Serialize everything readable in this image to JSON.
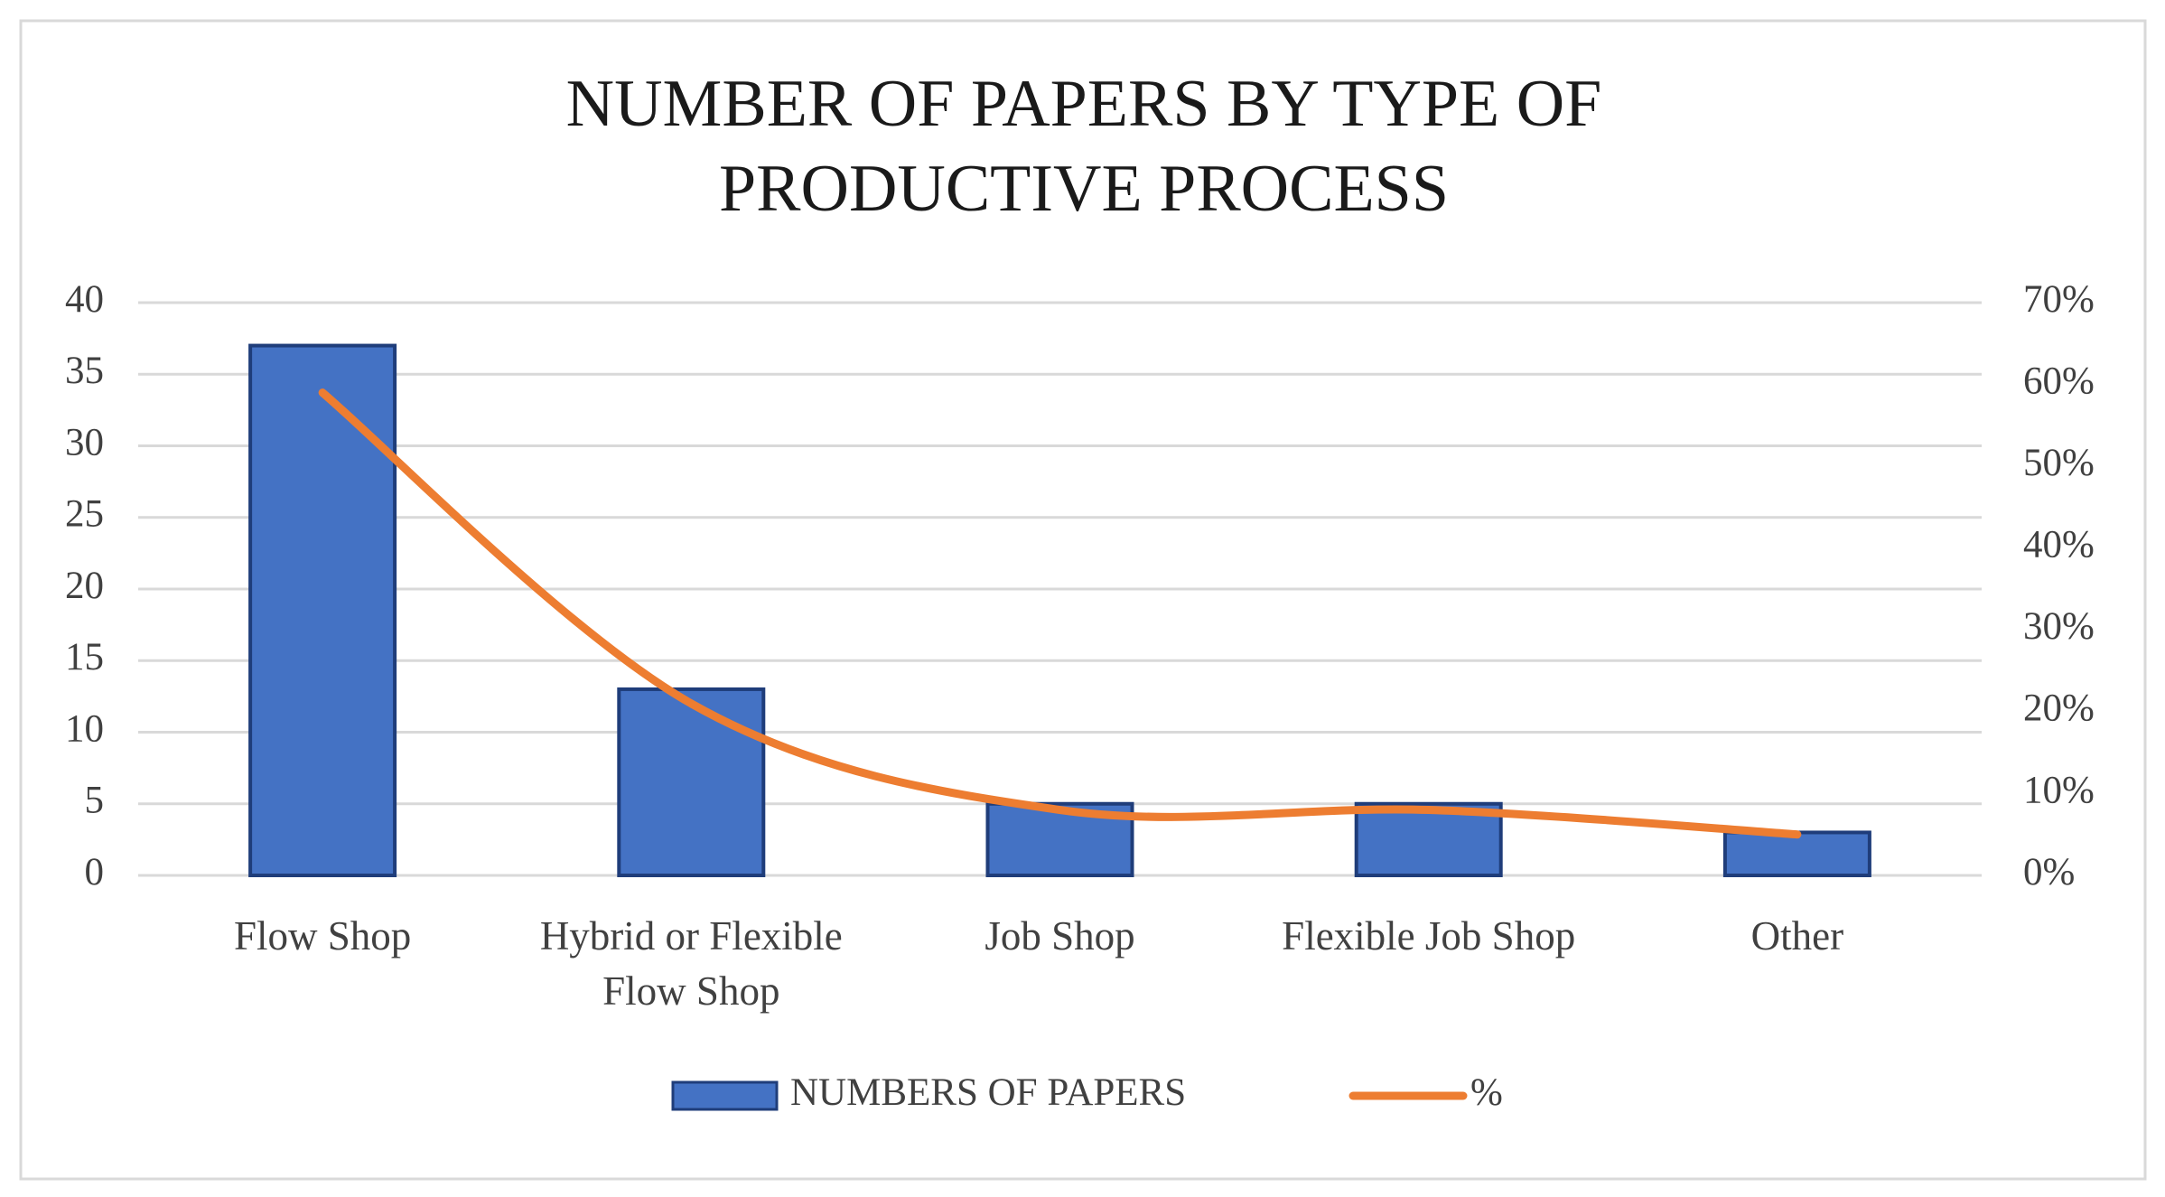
{
  "chart_data": {
    "type": "bar-line",
    "title": "NUMBER OF PAPERS BY TYPE OF PRODUCTIVE PROCESS",
    "categories": [
      "Flow Shop",
      "Hybrid or Flexible Flow Shop",
      "Job Shop",
      "Flexible Job Shop",
      "Other"
    ],
    "series": [
      {
        "name": "NUMBERS OF PAPERS",
        "type": "bar",
        "color": "#4472c4",
        "values": [
          37,
          13,
          5,
          5,
          3
        ]
      },
      {
        "name": "%",
        "type": "line",
        "axis": "y2",
        "color": "#ed7d31",
        "values": [
          59,
          21,
          8,
          8,
          5
        ]
      }
    ],
    "ylim": [
      0,
      40
    ],
    "yticks": [
      0,
      5,
      10,
      15,
      20,
      25,
      30,
      35,
      40
    ],
    "y2lim": [
      0,
      70
    ],
    "y2ticks": [
      {
        "value": 0,
        "label": "0%"
      },
      {
        "value": 10,
        "label": "10%"
      },
      {
        "value": 20,
        "label": "20%"
      },
      {
        "value": 30,
        "label": "30%"
      },
      {
        "value": 40,
        "label": "40%"
      },
      {
        "value": 50,
        "label": "50%"
      },
      {
        "value": 60,
        "label": "60%"
      },
      {
        "value": 70,
        "label": "70%"
      }
    ],
    "grid": true,
    "legend": "bottom"
  }
}
